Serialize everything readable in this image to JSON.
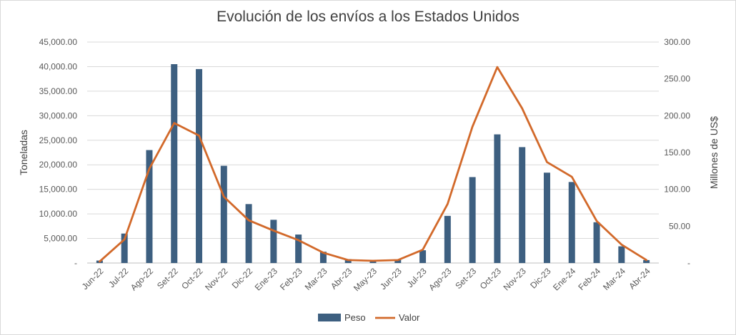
{
  "chart_data": {
    "type": "bar",
    "title": "Evolución de los envíos a los Estados Unidos",
    "categories": [
      "Jun-22",
      "Jul-22",
      "Ago-22",
      "Set-22",
      "Oct-22",
      "Nov-22",
      "Dic-22",
      "Ene-23",
      "Feb-23",
      "Mar-23",
      "Abr-23",
      "May-23",
      "Jun-23",
      "Jul-23",
      "Ago-23",
      "Set-23",
      "Oct-23",
      "Nov-23",
      "Dic-23",
      "Ene-24",
      "Feb-24",
      "Mar-24",
      "Abr-24"
    ],
    "series": [
      {
        "name": "Peso",
        "type": "bar",
        "axis": "left",
        "color": "#3d5f80",
        "values": [
          500,
          6000,
          23000,
          40500,
          39500,
          19800,
          12000,
          8800,
          5800,
          2300,
          800,
          400,
          700,
          2600,
          9600,
          17500,
          26200,
          23600,
          18400,
          16500,
          8300,
          3400,
          600
        ]
      },
      {
        "name": "Valor",
        "type": "line",
        "axis": "right",
        "color": "#d2692a",
        "values": [
          2,
          32,
          128,
          190,
          173,
          90,
          58,
          44,
          31,
          14,
          4,
          3,
          4,
          18,
          80,
          185,
          266,
          210,
          137,
          117,
          57,
          25,
          4
        ]
      }
    ],
    "y_left": {
      "label": "Toneladas",
      "min": 0,
      "max": 45000,
      "ticks": [
        "-",
        "5,000.00",
        "10,000.00",
        "15,000.00",
        "20,000.00",
        "25,000.00",
        "30,000.00",
        "35,000.00",
        "40,000.00",
        "45,000.00"
      ]
    },
    "y_right": {
      "label": "Millones de US$",
      "min": 0,
      "max": 300,
      "ticks": [
        "-",
        "50.00",
        "100.00",
        "150.00",
        "200.00",
        "250.00",
        "300.00"
      ]
    },
    "grid": true,
    "legend_position": "bottom"
  }
}
